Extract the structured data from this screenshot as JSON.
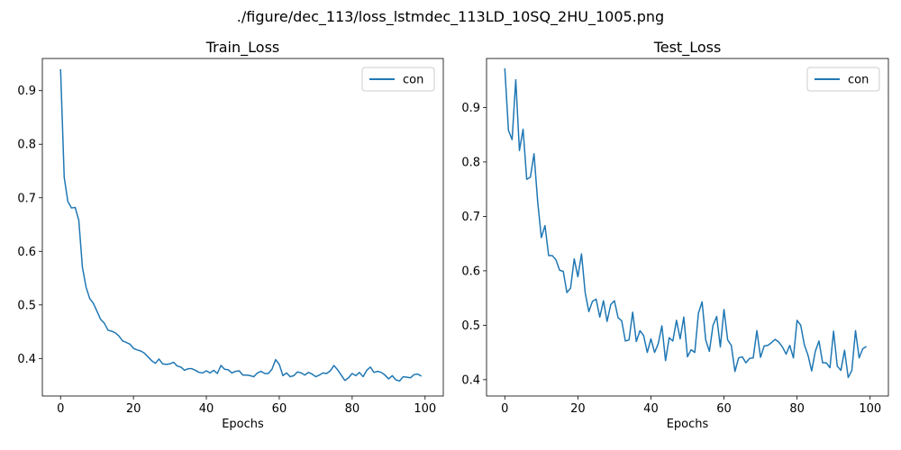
{
  "figure": {
    "suptitle": "./figure/dec_113/loss_lstmdec_113LD_10SQ_2HU_1005.png"
  },
  "colors": {
    "series": "#1f77b4",
    "axes": "#000000",
    "legend_border": "#cccccc"
  },
  "chart_data": [
    {
      "type": "line",
      "title": "Train_Loss",
      "xlabel": "Epochs",
      "ylabel": "",
      "xlim": [
        -5,
        105
      ],
      "ylim": [
        0.33,
        0.96
      ],
      "xticks": [
        0,
        20,
        40,
        60,
        80,
        100
      ],
      "yticks": [
        0.4,
        0.5,
        0.6,
        0.7,
        0.8,
        0.9
      ],
      "grid": false,
      "legend": "top-right",
      "series": [
        {
          "name": "con",
          "x": [
            0,
            1,
            2,
            3,
            4,
            5,
            6,
            7,
            8,
            9,
            10,
            11,
            12,
            13,
            14,
            15,
            16,
            17,
            18,
            19,
            20,
            21,
            22,
            23,
            24,
            25,
            26,
            27,
            28,
            29,
            30,
            31,
            32,
            33,
            34,
            35,
            36,
            37,
            38,
            39,
            40,
            41,
            42,
            43,
            44,
            45,
            46,
            47,
            48,
            49,
            50,
            51,
            52,
            53,
            54,
            55,
            56,
            57,
            58,
            59,
            60,
            61,
            62,
            63,
            64,
            65,
            66,
            67,
            68,
            69,
            70,
            71,
            72,
            73,
            74,
            75,
            76,
            77,
            78,
            79,
            80,
            81,
            82,
            83,
            84,
            85,
            86,
            87,
            88,
            89,
            90,
            91,
            92,
            93,
            94,
            95,
            96,
            97,
            98,
            99
          ],
          "values": [
            0.94,
            0.738,
            0.693,
            0.681,
            0.682,
            0.658,
            0.57,
            0.533,
            0.512,
            0.503,
            0.488,
            0.473,
            0.466,
            0.453,
            0.451,
            0.448,
            0.442,
            0.433,
            0.43,
            0.427,
            0.419,
            0.416,
            0.414,
            0.41,
            0.403,
            0.396,
            0.391,
            0.399,
            0.39,
            0.389,
            0.39,
            0.393,
            0.386,
            0.384,
            0.378,
            0.381,
            0.381,
            0.378,
            0.374,
            0.373,
            0.377,
            0.373,
            0.378,
            0.372,
            0.387,
            0.38,
            0.379,
            0.373,
            0.376,
            0.377,
            0.369,
            0.369,
            0.368,
            0.366,
            0.373,
            0.376,
            0.372,
            0.372,
            0.38,
            0.398,
            0.389,
            0.368,
            0.373,
            0.366,
            0.368,
            0.375,
            0.373,
            0.369,
            0.374,
            0.371,
            0.366,
            0.369,
            0.373,
            0.372,
            0.377,
            0.387,
            0.379,
            0.369,
            0.359,
            0.364,
            0.372,
            0.368,
            0.374,
            0.366,
            0.378,
            0.384,
            0.374,
            0.376,
            0.374,
            0.369,
            0.362,
            0.368,
            0.36,
            0.358,
            0.366,
            0.365,
            0.364,
            0.37,
            0.371,
            0.367
          ]
        }
      ]
    },
    {
      "type": "line",
      "title": "Test_Loss",
      "xlabel": "Epochs",
      "ylabel": "",
      "xlim": [
        -5,
        105
      ],
      "ylim": [
        0.37,
        0.99
      ],
      "xticks": [
        0,
        20,
        40,
        60,
        80,
        100
      ],
      "yticks": [
        0.4,
        0.5,
        0.6,
        0.7,
        0.8,
        0.9
      ],
      "grid": false,
      "legend": "top-right",
      "series": [
        {
          "name": "con",
          "x": [
            0,
            1,
            2,
            3,
            4,
            5,
            6,
            7,
            8,
            9,
            10,
            11,
            12,
            13,
            14,
            15,
            16,
            17,
            18,
            19,
            20,
            21,
            22,
            23,
            24,
            25,
            26,
            27,
            28,
            29,
            30,
            31,
            32,
            33,
            34,
            35,
            36,
            37,
            38,
            39,
            40,
            41,
            42,
            43,
            44,
            45,
            46,
            47,
            48,
            49,
            50,
            51,
            52,
            53,
            54,
            55,
            56,
            57,
            58,
            59,
            60,
            61,
            62,
            63,
            64,
            65,
            66,
            67,
            68,
            69,
            70,
            71,
            72,
            73,
            74,
            75,
            76,
            77,
            78,
            79,
            80,
            81,
            82,
            83,
            84,
            85,
            86,
            87,
            88,
            89,
            90,
            91,
            92,
            93,
            94,
            95,
            96,
            97,
            98,
            99
          ],
          "values": [
            0.972,
            0.858,
            0.841,
            0.951,
            0.821,
            0.86,
            0.768,
            0.772,
            0.815,
            0.727,
            0.661,
            0.683,
            0.628,
            0.628,
            0.62,
            0.601,
            0.599,
            0.56,
            0.568,
            0.622,
            0.589,
            0.631,
            0.56,
            0.525,
            0.544,
            0.548,
            0.515,
            0.545,
            0.507,
            0.538,
            0.545,
            0.514,
            0.508,
            0.471,
            0.473,
            0.524,
            0.47,
            0.49,
            0.481,
            0.45,
            0.475,
            0.45,
            0.466,
            0.499,
            0.435,
            0.477,
            0.471,
            0.509,
            0.475,
            0.515,
            0.442,
            0.455,
            0.45,
            0.522,
            0.543,
            0.473,
            0.452,
            0.5,
            0.516,
            0.46,
            0.529,
            0.473,
            0.463,
            0.415,
            0.44,
            0.442,
            0.431,
            0.439,
            0.44,
            0.49,
            0.441,
            0.462,
            0.463,
            0.468,
            0.474,
            0.469,
            0.46,
            0.447,
            0.463,
            0.44,
            0.509,
            0.5,
            0.464,
            0.445,
            0.416,
            0.452,
            0.471,
            0.431,
            0.431,
            0.422,
            0.489,
            0.425,
            0.417,
            0.454,
            0.404,
            0.417,
            0.49,
            0.44,
            0.457,
            0.461
          ]
        }
      ]
    }
  ]
}
